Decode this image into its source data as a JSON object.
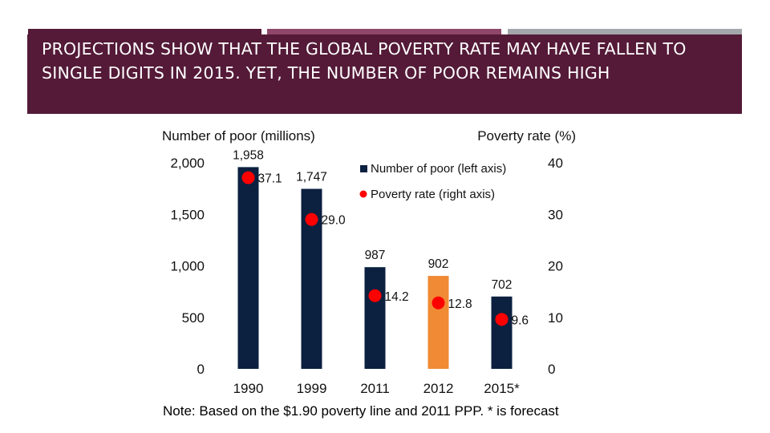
{
  "slide": {
    "title": "PROJECTIONS SHOW THAT THE GLOBAL POVERTY RATE MAY HAVE FALLEN TO SINGLE DIGITS IN 2015. YET, THE NUMBER OF POOR REMAINS HIGH",
    "note": "Note: Based on the $1.90 poverty line and 2011 PPP. * is forecast"
  },
  "colors": {
    "title_band": "#541a38",
    "accent_bar_1": "#541a38",
    "accent_bar_2": "#8e4769",
    "accent_bar_3": "#a3a6aa",
    "bar_actual": "#0c2040",
    "bar_highlight": "#f08a34",
    "rate_dot": "#ff0000"
  },
  "chart_data": {
    "type": "bar",
    "left_axis_label": "Number of poor (millions)",
    "right_axis_label": "Poverty rate (%)",
    "categories": [
      "1990",
      "1999",
      "2011",
      "2012",
      "2015*"
    ],
    "highlight_category": "2012",
    "left_ylim": [
      0,
      2000
    ],
    "right_ylim": [
      0,
      40
    ],
    "left_ticks": [
      "0",
      "500",
      "1,000",
      "1,500",
      "2,000"
    ],
    "right_ticks": [
      "0",
      "10",
      "20",
      "30",
      "40"
    ],
    "series": [
      {
        "name": "Number of poor (left axis)",
        "type": "bar",
        "axis": "left",
        "values": [
          1958,
          1747,
          987,
          902,
          702
        ],
        "labels": [
          "1,958",
          "1,747",
          "987",
          "902",
          "702"
        ]
      },
      {
        "name": "Poverty rate (right axis)",
        "type": "scatter",
        "axis": "right",
        "values": [
          37.1,
          29.0,
          14.2,
          12.8,
          9.6
        ],
        "labels": [
          "37.1",
          "29.0",
          "14.2",
          "12.8",
          "9.6"
        ]
      }
    ],
    "legend_position": "top-right",
    "grid": false
  }
}
